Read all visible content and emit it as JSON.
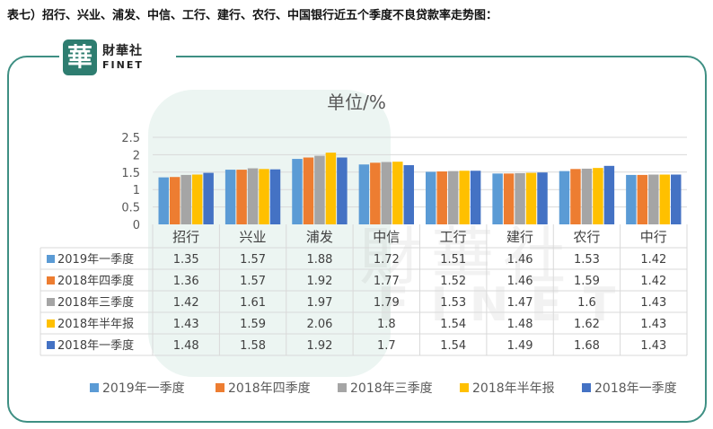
{
  "caption": "表七）招行、兴业、浦发、中信、工行、建行、农行、中国银行近五个季度不良贷款率走势图：",
  "logo": {
    "mark": "華",
    "cn": "財華社",
    "en": "FINET"
  },
  "chart_data": {
    "type": "bar",
    "title": "单位/%",
    "categories": [
      "招行",
      "兴业",
      "浦发",
      "中信",
      "工行",
      "建行",
      "农行",
      "中行"
    ],
    "ylim": [
      0,
      2.5
    ],
    "yticks": [
      "0",
      "0.5",
      "1",
      "1.5",
      "2",
      "2.5"
    ],
    "grid": true,
    "legend_position": "bottom",
    "series": [
      {
        "name": "2019年一季度",
        "color": "#5b9bd5",
        "values": [
          "1.35",
          "1.57",
          "1.88",
          "1.72",
          "1.51",
          "1.46",
          "1.53",
          "1.42"
        ]
      },
      {
        "name": "2018年四季度",
        "color": "#ed7d31",
        "values": [
          "1.36",
          "1.57",
          "1.92",
          "1.77",
          "1.52",
          "1.46",
          "1.59",
          "1.42"
        ]
      },
      {
        "name": "2018年三季度",
        "color": "#a5a5a5",
        "values": [
          "1.42",
          "1.61",
          "1.97",
          "1.79",
          "1.53",
          "1.47",
          "1.6",
          "1.43"
        ]
      },
      {
        "name": "2018年半年报",
        "color": "#ffc000",
        "values": [
          "1.43",
          "1.59",
          "2.06",
          "1.8",
          "1.54",
          "1.48",
          "1.62",
          "1.43"
        ]
      },
      {
        "name": "2018年一季度",
        "color": "#4472c4",
        "values": [
          "1.48",
          "1.58",
          "1.92",
          "1.7",
          "1.54",
          "1.49",
          "1.68",
          "1.43"
        ]
      }
    ]
  }
}
